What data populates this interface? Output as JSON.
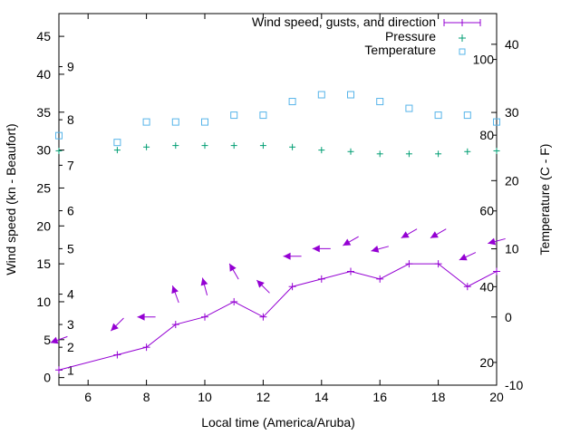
{
  "chart_data": {
    "type": "line",
    "xlabel": "Local time (America/Aruba)",
    "ylabel": "Wind speed (kn - Beaufort)",
    "y2label": "Temperature (C - F)",
    "xlim": [
      5,
      20
    ],
    "ylim": [
      -1,
      48
    ],
    "y2lim": [
      -10,
      44.5
    ],
    "xticks": [
      6,
      8,
      10,
      12,
      14,
      16,
      18,
      20
    ],
    "yticks": [
      0,
      5,
      10,
      15,
      20,
      25,
      30,
      35,
      40,
      45
    ],
    "y2ticks": [
      -10,
      0,
      10,
      20,
      30,
      40
    ],
    "beaufort_labels": [
      {
        "label": "1",
        "kn": 1
      },
      {
        "label": "2",
        "kn": 4
      },
      {
        "label": "3",
        "kn": 7
      },
      {
        "label": "4",
        "kn": 11
      },
      {
        "label": "5",
        "kn": 17
      },
      {
        "label": "6",
        "kn": 22
      },
      {
        "label": "7",
        "kn": 28
      },
      {
        "label": "8",
        "kn": 34
      },
      {
        "label": "9",
        "kn": 41
      }
    ],
    "fahrenheit_labels": [
      {
        "label": "20",
        "f": 20
      },
      {
        "label": "40",
        "f": 40
      },
      {
        "label": "60",
        "f": 60
      },
      {
        "label": "80",
        "f": 80
      },
      {
        "label": "100",
        "f": 100
      }
    ],
    "legend_position": "top-right",
    "grid": false,
    "series": [
      {
        "name": "Wind speed, gusts, and direction",
        "color": "#9400d3",
        "x": [
          5,
          7,
          8,
          9,
          10,
          11,
          12,
          13,
          14,
          15,
          16,
          17,
          18,
          19,
          20
        ],
        "speed": [
          1,
          3,
          4,
          7,
          8,
          10,
          8,
          12,
          13,
          14,
          13,
          15,
          15,
          12,
          14
        ],
        "gust": [
          5,
          7,
          8,
          11,
          12,
          14,
          12,
          16,
          17,
          18,
          17,
          19,
          19,
          16,
          18
        ],
        "direction_deg": [
          70,
          45,
          90,
          160,
          165,
          150,
          135,
          90,
          90,
          60,
          75,
          60,
          60,
          65,
          75
        ]
      },
      {
        "name": "Pressure",
        "color": "#009e73",
        "x": [
          5,
          7,
          8,
          9,
          10,
          11,
          12,
          13,
          14,
          15,
          16,
          17,
          18,
          19,
          20
        ],
        "values": [
          29.9,
          30.0,
          30.4,
          30.6,
          30.6,
          30.6,
          30.6,
          30.4,
          30.0,
          29.8,
          29.5,
          29.5,
          29.5,
          29.8,
          29.9
        ]
      },
      {
        "name": "Temperature",
        "color": "#56b4e9",
        "axis": "y2",
        "x": [
          5,
          7,
          8,
          9,
          10,
          11,
          12,
          13,
          14,
          15,
          16,
          17,
          18,
          19,
          20
        ],
        "values": [
          26.6,
          25.6,
          28.6,
          28.6,
          28.6,
          29.6,
          29.6,
          31.6,
          32.6,
          32.6,
          31.6,
          30.6,
          29.6,
          29.6,
          28.6
        ]
      }
    ]
  }
}
